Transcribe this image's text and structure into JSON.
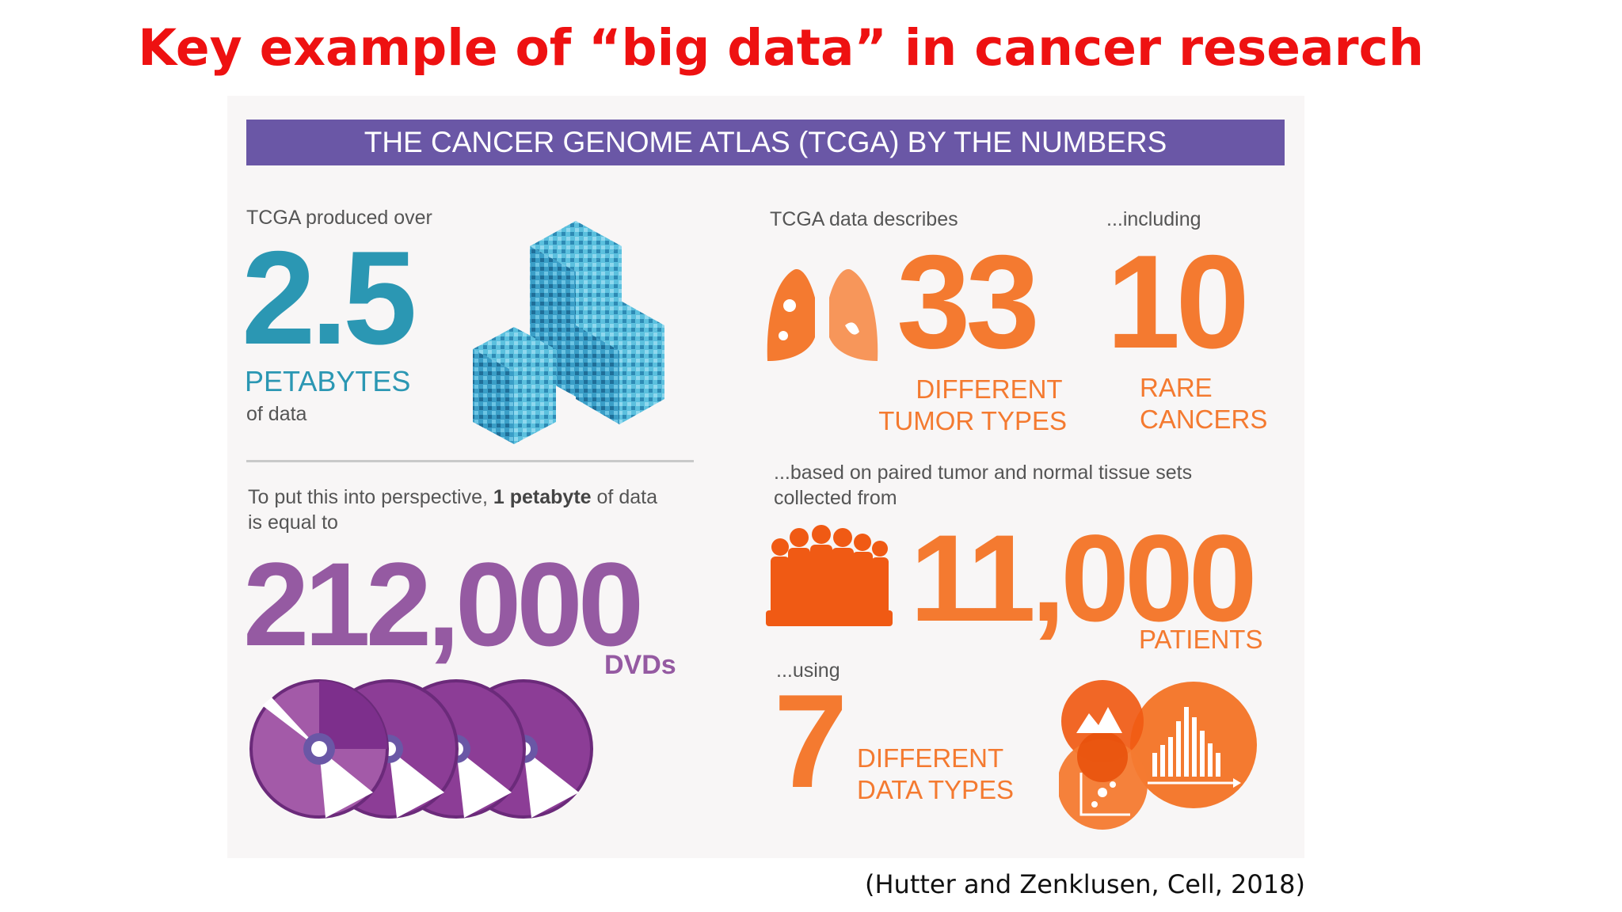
{
  "slide": {
    "title": "Key example of “big data” in cancer research",
    "citation": "(Hutter and Zenklusen, Cell, 2018)"
  },
  "infographic": {
    "banner": "THE CANCER GENOME ATLAS (TCGA) BY THE NUMBERS",
    "petabytes": {
      "intro": "TCGA produced over",
      "value": "2.5",
      "unit": "PETABYTES",
      "suffix": "of data"
    },
    "perspective": {
      "text_before": "To put this into perspective,",
      "text_bold": "1 petabyte",
      "text_after": "of data",
      "text_line2": "is equal to",
      "value": "212,000",
      "unit": "DVDs"
    },
    "tumor_types": {
      "intro": "TCGA data describes",
      "value": "33",
      "label_line1": "DIFFERENT",
      "label_line2": "TUMOR TYPES"
    },
    "rare_cancers": {
      "intro": "...including",
      "value": "10",
      "label_line1": "RARE",
      "label_line2": "CANCERS"
    },
    "patients": {
      "intro_line1": "...based on paired tumor and normal tissue sets",
      "intro_line2": "collected from",
      "value": "11,000",
      "label": "PATIENTS"
    },
    "data_types": {
      "intro": "...using",
      "value": "7",
      "label_line1": "DIFFERENT",
      "label_line2": "DATA TYPES"
    },
    "icons": [
      "data-cube-icon",
      "lungs-icon",
      "crowd-icon",
      "dvd-disc-icon",
      "data-type-circles-icon"
    ],
    "colors": {
      "banner": "#6a57a6",
      "teal": "#2b97b3",
      "purple": "#955aa2",
      "orange": "#f47a30",
      "title_red": "#ee1111"
    }
  }
}
